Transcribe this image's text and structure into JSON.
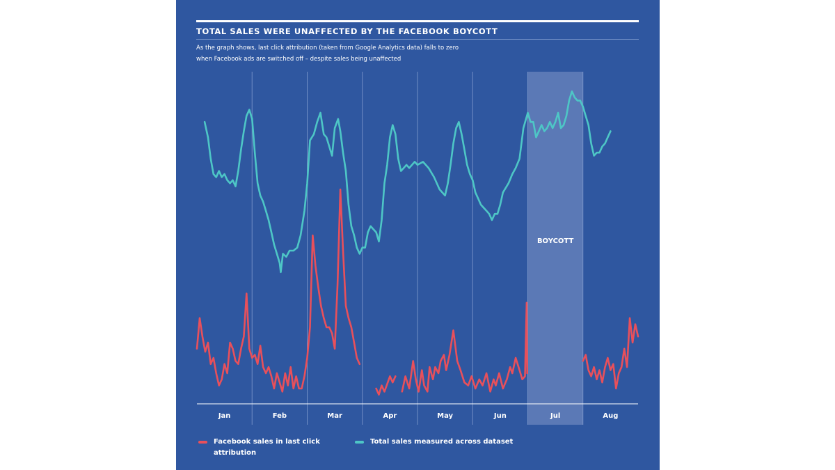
{
  "header": {
    "title": "TOTAL SALES WERE UNAFFECTED BY THE FACEBOOK BOYCOTT",
    "subtitle_line1": "As the graph shows, last click attribution (taken from Google Analytics data) falls to zero",
    "subtitle_line2": "when Facebook ads are switched off – despite sales being unaffected"
  },
  "colors": {
    "background": "#2f57a0",
    "total_sales": "#4ec6c6",
    "facebook_sales": "#e8505b",
    "boycott_band": "#5b79b6",
    "gridline": "#8ea6d4"
  },
  "chart_data": {
    "type": "line",
    "title": "TOTAL SALES WERE UNAFFECTED BY THE FACEBOOK BOYCOTT",
    "xlabel": "",
    "ylabel": "",
    "x_range": [
      0,
      8
    ],
    "ylim": [
      0,
      100
    ],
    "grid": "vertical lines between months",
    "categories": [
      "Jan",
      "Feb",
      "Mar",
      "Apr",
      "May",
      "Jun",
      "Jul",
      "Aug"
    ],
    "annotation": {
      "label": "BOYCOTT",
      "x_start": 6.0,
      "x_end": 7.0
    },
    "series": [
      {
        "name": "Total sales measured across dataset",
        "color": "#4ec6c6",
        "points": [
          [
            0.14,
            92
          ],
          [
            0.2,
            87
          ],
          [
            0.25,
            80
          ],
          [
            0.3,
            75
          ],
          [
            0.35,
            74
          ],
          [
            0.4,
            76
          ],
          [
            0.45,
            74
          ],
          [
            0.5,
            75
          ],
          [
            0.55,
            73
          ],
          [
            0.6,
            72
          ],
          [
            0.65,
            73
          ],
          [
            0.7,
            71
          ],
          [
            0.75,
            76
          ],
          [
            0.8,
            83
          ],
          [
            0.85,
            89
          ],
          [
            0.9,
            94
          ],
          [
            0.95,
            96
          ],
          [
            1.0,
            93
          ],
          [
            1.05,
            82
          ],
          [
            1.1,
            72
          ],
          [
            1.15,
            68
          ],
          [
            1.2,
            66
          ],
          [
            1.25,
            63
          ],
          [
            1.3,
            60
          ],
          [
            1.35,
            56
          ],
          [
            1.4,
            52
          ],
          [
            1.45,
            49
          ],
          [
            1.5,
            46
          ],
          [
            1.52,
            43
          ],
          [
            1.56,
            49
          ],
          [
            1.62,
            48
          ],
          [
            1.68,
            50
          ],
          [
            1.75,
            50
          ],
          [
            1.82,
            51
          ],
          [
            1.88,
            55
          ],
          [
            1.95,
            63
          ],
          [
            2.0,
            72
          ],
          [
            2.05,
            86
          ],
          [
            2.12,
            88
          ],
          [
            2.18,
            92
          ],
          [
            2.24,
            95
          ],
          [
            2.3,
            88
          ],
          [
            2.35,
            87
          ],
          [
            2.4,
            84
          ],
          [
            2.45,
            81
          ],
          [
            2.5,
            90
          ],
          [
            2.56,
            93
          ],
          [
            2.6,
            89
          ],
          [
            2.65,
            82
          ],
          [
            2.7,
            76
          ],
          [
            2.75,
            65
          ],
          [
            2.8,
            58
          ],
          [
            2.85,
            55
          ],
          [
            2.9,
            51
          ],
          [
            2.95,
            49
          ],
          [
            3.0,
            51
          ],
          [
            3.05,
            51
          ],
          [
            3.1,
            56
          ],
          [
            3.15,
            58
          ],
          [
            3.2,
            57
          ],
          [
            3.25,
            56
          ],
          [
            3.3,
            53
          ],
          [
            3.35,
            60
          ],
          [
            3.4,
            72
          ],
          [
            3.45,
            78
          ],
          [
            3.5,
            87
          ],
          [
            3.55,
            91
          ],
          [
            3.6,
            88
          ],
          [
            3.65,
            80
          ],
          [
            3.7,
            76
          ],
          [
            3.75,
            77
          ],
          [
            3.8,
            78
          ],
          [
            3.85,
            77
          ],
          [
            3.9,
            78
          ],
          [
            3.95,
            79
          ],
          [
            4.0,
            78
          ],
          [
            4.1,
            79
          ],
          [
            4.2,
            77
          ],
          [
            4.3,
            74
          ],
          [
            4.4,
            70
          ],
          [
            4.5,
            68
          ],
          [
            4.55,
            72
          ],
          [
            4.6,
            78
          ],
          [
            4.65,
            85
          ],
          [
            4.7,
            90
          ],
          [
            4.75,
            92
          ],
          [
            4.8,
            88
          ],
          [
            4.85,
            83
          ],
          [
            4.9,
            78
          ],
          [
            4.95,
            75
          ],
          [
            5.0,
            73
          ],
          [
            5.05,
            69
          ],
          [
            5.1,
            67
          ],
          [
            5.15,
            65
          ],
          [
            5.2,
            64
          ],
          [
            5.25,
            63
          ],
          [
            5.3,
            62
          ],
          [
            5.35,
            60
          ],
          [
            5.4,
            62
          ],
          [
            5.45,
            62
          ],
          [
            5.5,
            65
          ],
          [
            5.55,
            69
          ],
          [
            5.65,
            72
          ],
          [
            5.72,
            75
          ],
          [
            5.78,
            77
          ],
          [
            5.85,
            80
          ],
          [
            5.92,
            90
          ],
          [
            6.0,
            95
          ],
          [
            6.05,
            92
          ],
          [
            6.1,
            92
          ],
          [
            6.15,
            87
          ],
          [
            6.2,
            89
          ],
          [
            6.25,
            91
          ],
          [
            6.3,
            89
          ],
          [
            6.35,
            90
          ],
          [
            6.4,
            92
          ],
          [
            6.45,
            90
          ],
          [
            6.5,
            92
          ],
          [
            6.55,
            95
          ],
          [
            6.6,
            90
          ],
          [
            6.65,
            91
          ],
          [
            6.7,
            94
          ],
          [
            6.75,
            99
          ],
          [
            6.8,
            102
          ],
          [
            6.85,
            100
          ],
          [
            6.9,
            99
          ],
          [
            6.95,
            99
          ],
          [
            7.0,
            97
          ],
          [
            7.05,
            94
          ],
          [
            7.1,
            91
          ],
          [
            7.15,
            85
          ],
          [
            7.2,
            81
          ],
          [
            7.25,
            82
          ],
          [
            7.3,
            82
          ],
          [
            7.35,
            84
          ],
          [
            7.4,
            85
          ],
          [
            7.45,
            87
          ],
          [
            7.5,
            89
          ]
        ]
      },
      {
        "name": "Facebook sales in last click attribution",
        "color": "#e8505b",
        "segments": [
          [
            [
              0.0,
              18
            ],
            [
              0.05,
              28
            ],
            [
              0.1,
              22
            ],
            [
              0.15,
              17
            ],
            [
              0.2,
              20
            ],
            [
              0.25,
              13
            ],
            [
              0.3,
              15
            ],
            [
              0.35,
              10
            ],
            [
              0.4,
              6
            ],
            [
              0.45,
              8
            ],
            [
              0.5,
              13
            ],
            [
              0.55,
              10
            ],
            [
              0.6,
              20
            ],
            [
              0.65,
              18
            ],
            [
              0.7,
              14
            ],
            [
              0.75,
              13
            ],
            [
              0.8,
              18
            ],
            [
              0.85,
              22
            ],
            [
              0.9,
              36
            ],
            [
              0.95,
              18
            ],
            [
              1.0,
              15
            ],
            [
              1.05,
              16
            ],
            [
              1.1,
              13
            ],
            [
              1.15,
              19
            ],
            [
              1.2,
              12
            ],
            [
              1.25,
              10
            ],
            [
              1.3,
              12
            ],
            [
              1.35,
              9
            ],
            [
              1.4,
              5
            ],
            [
              1.45,
              10
            ],
            [
              1.5,
              7
            ],
            [
              1.55,
              4
            ],
            [
              1.6,
              10
            ],
            [
              1.65,
              6
            ],
            [
              1.7,
              12
            ],
            [
              1.75,
              5
            ],
            [
              1.8,
              9
            ],
            [
              1.85,
              5
            ],
            [
              1.9,
              5
            ],
            [
              1.95,
              9
            ],
            [
              2.0,
              15
            ],
            [
              2.05,
              25
            ],
            [
              2.1,
              55
            ],
            [
              2.15,
              45
            ],
            [
              2.2,
              38
            ],
            [
              2.25,
              32
            ],
            [
              2.3,
              28
            ],
            [
              2.35,
              25
            ],
            [
              2.4,
              25
            ],
            [
              2.45,
              23
            ],
            [
              2.5,
              18
            ],
            [
              2.55,
              39
            ],
            [
              2.6,
              70
            ],
            [
              2.65,
              50
            ],
            [
              2.7,
              32
            ],
            [
              2.75,
              28
            ],
            [
              2.8,
              25
            ],
            [
              2.85,
              20
            ],
            [
              2.9,
              15
            ],
            [
              2.95,
              13
            ]
          ],
          [
            [
              3.25,
              5
            ],
            [
              3.3,
              3
            ],
            [
              3.35,
              6
            ],
            [
              3.4,
              4
            ],
            [
              3.5,
              9
            ],
            [
              3.55,
              7
            ],
            [
              3.6,
              9
            ]
          ],
          [
            [
              3.72,
              4
            ],
            [
              3.78,
              9
            ],
            [
              3.85,
              5
            ],
            [
              3.92,
              14
            ],
            [
              3.97,
              8
            ],
            [
              4.02,
              4
            ],
            [
              4.08,
              11
            ],
            [
              4.12,
              6
            ],
            [
              4.18,
              4
            ],
            [
              4.22,
              12
            ],
            [
              4.28,
              8
            ],
            [
              4.32,
              12
            ],
            [
              4.38,
              10
            ],
            [
              4.42,
              14
            ],
            [
              4.48,
              16
            ],
            [
              4.52,
              11
            ],
            [
              4.58,
              16
            ],
            [
              4.65,
              24
            ],
            [
              4.72,
              14
            ],
            [
              4.78,
              11
            ],
            [
              4.85,
              7
            ],
            [
              4.92,
              6
            ],
            [
              4.98,
              9
            ],
            [
              5.05,
              5
            ],
            [
              5.12,
              8
            ],
            [
              5.18,
              6
            ],
            [
              5.25,
              10
            ],
            [
              5.32,
              4
            ],
            [
              5.38,
              8
            ],
            [
              5.42,
              6
            ],
            [
              5.48,
              10
            ],
            [
              5.55,
              5
            ],
            [
              5.62,
              8
            ],
            [
              5.68,
              12
            ],
            [
              5.72,
              10
            ],
            [
              5.78,
              15
            ],
            [
              5.85,
              11
            ],
            [
              5.9,
              8
            ],
            [
              5.95,
              9
            ],
            [
              5.98,
              33
            ],
            [
              5.99,
              10
            ]
          ],
          [
            [
              7.0,
              14
            ],
            [
              7.05,
              16
            ],
            [
              7.1,
              11
            ],
            [
              7.15,
              9
            ],
            [
              7.2,
              12
            ],
            [
              7.25,
              8
            ],
            [
              7.3,
              11
            ],
            [
              7.35,
              7
            ],
            [
              7.4,
              12
            ],
            [
              7.45,
              15
            ],
            [
              7.5,
              11
            ],
            [
              7.55,
              13
            ],
            [
              7.6,
              5
            ],
            [
              7.65,
              10
            ],
            [
              7.7,
              12
            ],
            [
              7.75,
              18
            ],
            [
              7.8,
              12
            ],
            [
              7.85,
              28
            ],
            [
              7.9,
              20
            ],
            [
              7.95,
              26
            ],
            [
              8.0,
              22
            ]
          ]
        ]
      }
    ]
  },
  "legend": {
    "facebook_label": "Facebook sales in last click attribution",
    "total_label": "Total sales measured across dataset"
  }
}
